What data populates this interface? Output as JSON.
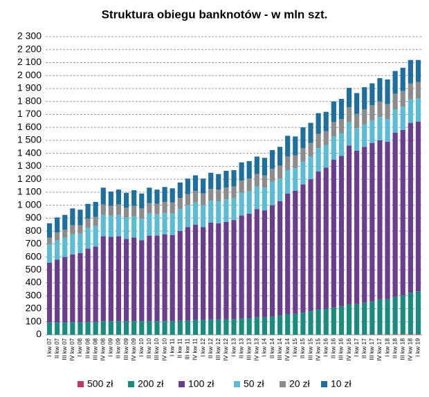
{
  "chart_data": {
    "type": "stacked_bar",
    "title": "Struktura obiegu banknotów  - w mln szt.",
    "categories": [
      "I kw 07",
      "II kw 07",
      "III kw 07",
      "IV kw 07",
      "I kw 08",
      "II kw 08",
      "III kw 08",
      "IV kw 08",
      "I kw 09",
      "II kw 09",
      "III kw 09",
      "IV kw 09",
      "I kw 10",
      "II kw 10",
      "III kw 10",
      "IV kw 10",
      "I kw 11",
      "II kw 11",
      "III kw 11",
      "IV kw 11",
      "I kw 12",
      "II kw 12",
      "III kw 12",
      "IV kw 12",
      "I kw 13",
      "II kw 13",
      "III kw 13",
      "IV kw 13",
      "I kw 14",
      "II kw 14",
      "III kw 14",
      "IV kw 14",
      "I kw 15",
      "II kw 15",
      "III kw 15",
      "IV kw 15",
      "I kw 16",
      "II kw 16",
      "III kw 16",
      "IV kw 16",
      "I kw 17",
      "II kw 17",
      "III kw 17",
      "IV kw 17",
      "I kw 18",
      "II kw 18",
      "III kw 18",
      "IV kw 18",
      "I kw 19"
    ],
    "series": [
      {
        "name": "500 zł",
        "color": "#c0395a",
        "values": [
          0,
          0,
          0,
          0,
          0,
          0,
          0,
          0,
          0,
          0,
          0,
          0,
          0,
          0,
          0,
          0,
          0,
          0,
          0,
          0,
          0,
          0,
          0,
          0,
          0,
          0,
          0,
          0,
          0,
          0,
          0,
          0,
          0,
          0,
          0,
          0,
          0,
          0,
          0,
          0,
          1,
          2,
          2,
          3,
          3,
          4,
          4,
          5,
          5
        ]
      },
      {
        "name": "200 zł",
        "color": "#1a8c7d",
        "values": [
          95,
          95,
          95,
          95,
          95,
          98,
          98,
          105,
          105,
          105,
          105,
          105,
          105,
          105,
          105,
          105,
          105,
          108,
          110,
          115,
          115,
          118,
          118,
          120,
          122,
          125,
          128,
          135,
          135,
          140,
          148,
          160,
          162,
          170,
          180,
          195,
          200,
          210,
          220,
          235,
          235,
          245,
          255,
          270,
          270,
          290,
          300,
          320,
          330
        ]
      },
      {
        "name": "100 zł",
        "color": "#6a3d8f",
        "values": [
          460,
          485,
          505,
          525,
          535,
          567,
          582,
          655,
          650,
          655,
          635,
          645,
          625,
          660,
          660,
          670,
          665,
          692,
          720,
          735,
          715,
          747,
          742,
          750,
          763,
          795,
          807,
          835,
          825,
          860,
          882,
          930,
          948,
          990,
          1020,
          1065,
          1090,
          1140,
          1160,
          1225,
          1184,
          1203,
          1223,
          1227,
          1217,
          1266,
          1276,
          1310,
          1310
        ]
      },
      {
        "name": "50 zł",
        "color": "#5bbcd6",
        "values": [
          145,
          150,
          150,
          155,
          150,
          160,
          160,
          165,
          165,
          165,
          165,
          165,
          165,
          170,
          165,
          165,
          165,
          170,
          170,
          170,
          170,
          170,
          170,
          175,
          170,
          175,
          175,
          175,
          175,
          180,
          175,
          180,
          175,
          175,
          175,
          180,
          175,
          180,
          175,
          180,
          175,
          175,
          175,
          180,
          175,
          180,
          180,
          180,
          180
        ]
      },
      {
        "name": "20 zł",
        "color": "#8c8c8c",
        "values": [
          50,
          60,
          60,
          70,
          65,
          70,
          70,
          80,
          75,
          80,
          75,
          80,
          80,
          80,
          80,
          85,
          85,
          85,
          85,
          90,
          90,
          90,
          90,
          90,
          90,
          95,
          95,
          95,
          95,
          100,
          100,
          105,
          100,
          105,
          105,
          110,
          105,
          110,
          110,
          115,
          110,
          115,
          115,
          120,
          115,
          120,
          120,
          125,
          125
        ]
      },
      {
        "name": "10 zł",
        "color": "#1f6f9e",
        "values": [
          110,
          115,
          115,
          130,
          120,
          115,
          115,
          130,
          110,
          115,
          115,
          120,
          115,
          120,
          110,
          115,
          110,
          120,
          120,
          120,
          115,
          125,
          120,
          130,
          125,
          140,
          135,
          135,
          135,
          145,
          145,
          160,
          145,
          160,
          155,
          160,
          150,
          160,
          155,
          150,
          160,
          170,
          170,
          180,
          190,
          175,
          180,
          180,
          170
        ]
      }
    ],
    "ylim": [
      0,
      2300
    ],
    "yticks": [
      0,
      100,
      200,
      300,
      400,
      500,
      600,
      700,
      800,
      900,
      {
        "value": 1000,
        "label": "1 000"
      },
      {
        "value": 1100,
        "label": "1 100"
      },
      {
        "value": 1200,
        "label": "1 200"
      },
      {
        "value": 1300,
        "label": "1 300"
      },
      {
        "value": 1400,
        "label": "1 400"
      },
      {
        "value": 1500,
        "label": "1 500"
      },
      {
        "value": 1600,
        "label": "1 600"
      },
      {
        "value": 1700,
        "label": "1 700"
      },
      {
        "value": 1800,
        "label": "1 800"
      },
      {
        "value": 1900,
        "label": "1 900"
      },
      {
        "value": 2000,
        "label": "2 000"
      },
      {
        "value": 2100,
        "label": "2 100"
      },
      {
        "value": 2200,
        "label": "2 200"
      },
      {
        "value": 2300,
        "label": "2 300"
      }
    ],
    "grid": true,
    "legend": "bottom"
  }
}
